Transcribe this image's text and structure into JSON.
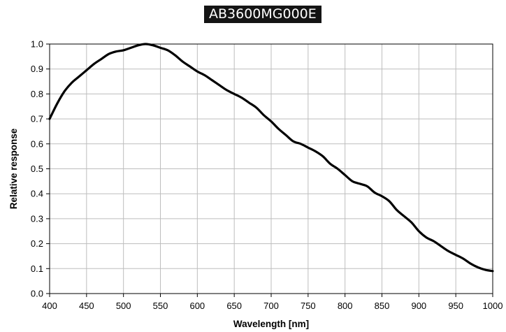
{
  "chart_data": {
    "type": "line",
    "title": "AB3600MG000E",
    "xlabel": "Wavelength [nm]",
    "ylabel": "Relative response",
    "xlim": [
      400,
      1000
    ],
    "ylim": [
      0.0,
      1.0
    ],
    "grid": true,
    "x_ticks": [
      "400",
      "450",
      "500",
      "550",
      "600",
      "650",
      "700",
      "750",
      "800",
      "850",
      "900",
      "950",
      "1000"
    ],
    "y_ticks": [
      "0.0",
      "0.1",
      "0.2",
      "0.3",
      "0.4",
      "0.5",
      "0.6",
      "0.7",
      "0.8",
      "0.9",
      "1.0"
    ],
    "line_color": "#000000",
    "series": [
      {
        "x": [
          400,
          410,
          420,
          430,
          440,
          450,
          460,
          470,
          480,
          490,
          500,
          510,
          520,
          530,
          540,
          550,
          560,
          570,
          580,
          590,
          600,
          610,
          620,
          630,
          640,
          650,
          660,
          670,
          680,
          690,
          700,
          710,
          720,
          730,
          740,
          750,
          760,
          770,
          780,
          790,
          800,
          810,
          820,
          830,
          840,
          850,
          860,
          870,
          880,
          890,
          900,
          910,
          920,
          930,
          940,
          950,
          960,
          970,
          980,
          990,
          1000
        ],
        "y": [
          0.7,
          0.76,
          0.81,
          0.845,
          0.87,
          0.895,
          0.92,
          0.94,
          0.96,
          0.97,
          0.975,
          0.985,
          0.995,
          1.0,
          0.995,
          0.985,
          0.975,
          0.955,
          0.93,
          0.91,
          0.89,
          0.875,
          0.855,
          0.835,
          0.815,
          0.8,
          0.785,
          0.765,
          0.745,
          0.715,
          0.69,
          0.66,
          0.635,
          0.61,
          0.6,
          0.585,
          0.57,
          0.55,
          0.52,
          0.5,
          0.475,
          0.45,
          0.44,
          0.43,
          0.405,
          0.39,
          0.37,
          0.335,
          0.31,
          0.285,
          0.25,
          0.225,
          0.21,
          0.19,
          0.17,
          0.155,
          0.14,
          0.12,
          0.105,
          0.095,
          0.09
        ]
      }
    ]
  }
}
